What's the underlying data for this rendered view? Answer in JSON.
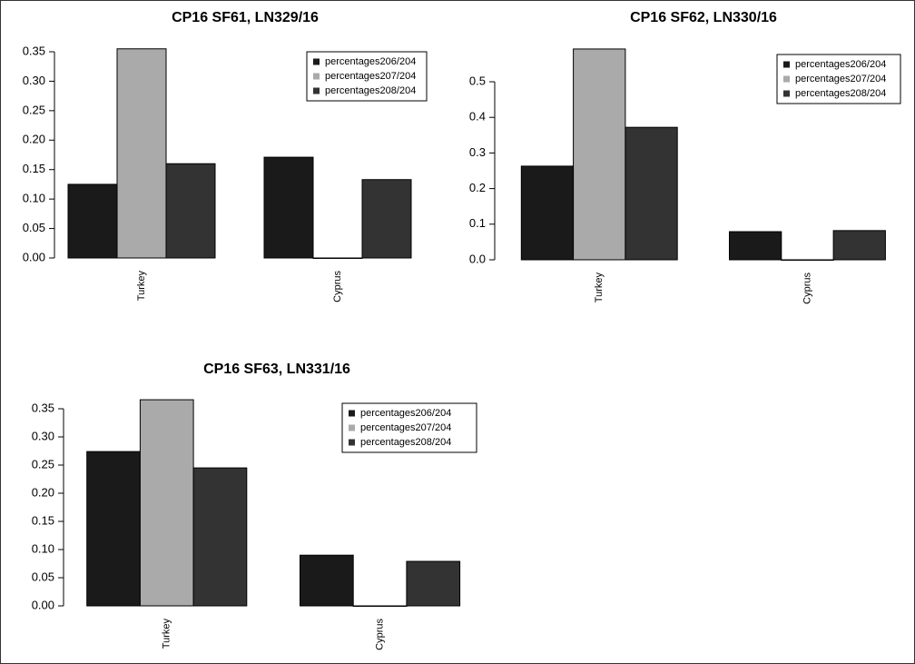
{
  "chart_data": [
    {
      "type": "bar",
      "title": "CP16 SF61, LN329/16",
      "categories": [
        "Turkey",
        "Cyprus"
      ],
      "series": [
        {
          "name": "percentages206/204",
          "color": "#1a1a1a",
          "values": [
            0.125,
            0.171
          ]
        },
        {
          "name": "percentages207/204",
          "color": "#aaaaaa",
          "values": [
            0.355,
            0
          ]
        },
        {
          "name": "percentages208/204",
          "color": "#333333",
          "values": [
            0.16,
            0.133
          ]
        }
      ],
      "ylim": [
        0,
        0.36
      ],
      "yticks": [
        {
          "value": 0,
          "label": "0.00"
        },
        {
          "value": 0.05,
          "label": "0.05"
        },
        {
          "value": 0.1,
          "label": "0.10"
        },
        {
          "value": 0.15,
          "label": "0.15"
        },
        {
          "value": 0.2,
          "label": "0.20"
        },
        {
          "value": 0.25,
          "label": "0.25"
        },
        {
          "value": 0.3,
          "label": "0.30"
        },
        {
          "value": 0.35,
          "label": "0.35"
        }
      ],
      "legend": "top-right"
    },
    {
      "type": "bar",
      "title": "CP16 SF62, LN330/16",
      "categories": [
        "Turkey",
        "Cyprus"
      ],
      "series": [
        {
          "name": "percentages206/204",
          "color": "#1a1a1a",
          "values": [
            0.263,
            0.079
          ]
        },
        {
          "name": "percentages207/204",
          "color": "#aaaaaa",
          "values": [
            0.592,
            0
          ]
        },
        {
          "name": "percentages208/204",
          "color": "#333333",
          "values": [
            0.372,
            0.082
          ]
        }
      ],
      "ylim": [
        0,
        0.6
      ],
      "yticks": [
        {
          "value": 0,
          "label": "0.0"
        },
        0.1,
        0.2,
        0.3,
        0.4,
        0.5
      ],
      "legend": "top-right"
    },
    {
      "type": "bar",
      "title": "CP16 SF63, LN331/16",
      "categories": [
        "Turkey",
        "Cyprus"
      ],
      "series": [
        {
          "name": "percentages206/204",
          "color": "#1a1a1a",
          "values": [
            0.274,
            0.09
          ]
        },
        {
          "name": "percentages207/204",
          "color": "#aaaaaa",
          "values": [
            0.366,
            0
          ]
        },
        {
          "name": "percentages208/204",
          "color": "#333333",
          "values": [
            0.245,
            0.079
          ]
        }
      ],
      "ylim": [
        0,
        0.37
      ],
      "yticks": [
        {
          "value": 0,
          "label": "0.00"
        },
        {
          "value": 0.05,
          "label": "0.05"
        },
        {
          "value": 0.1,
          "label": "0.10"
        },
        {
          "value": 0.15,
          "label": "0.15"
        },
        {
          "value": 0.2,
          "label": "0.20"
        },
        {
          "value": 0.25,
          "label": "0.25"
        },
        {
          "value": 0.3,
          "label": "0.30"
        },
        {
          "value": 0.35,
          "label": "0.35"
        }
      ],
      "legend": "top-right"
    }
  ]
}
